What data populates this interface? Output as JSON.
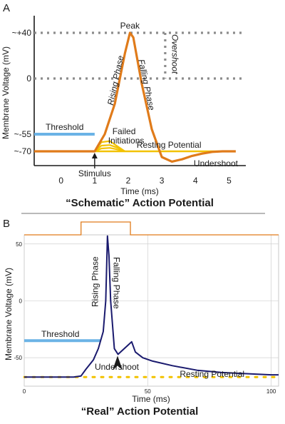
{
  "panel_a": {
    "letter": "A",
    "ylabel": "Membrane Voltage (mV)",
    "xlabel": "Time (ms)",
    "title": "“Schematic” Action Potential",
    "y_tick_labels": [
      "~+40",
      "0",
      "~-55",
      "~-70"
    ],
    "x_tick_labels": [
      "0",
      "1",
      "2",
      "3",
      "4",
      "5"
    ],
    "labels": {
      "peak": "Peak",
      "threshold": "Threshold",
      "rising": "Rising Phase",
      "falling": "Falling Phase",
      "overshoot": "Overshoot",
      "failed": "Failed\nInitiations",
      "resting": "Resting Potential",
      "undershoot": "Undershoot",
      "stimulus": "Stimulus"
    }
  },
  "panel_b": {
    "letter": "B",
    "ylabel": "Membrane Voltage (mV)",
    "xlabel": "Time (ms)",
    "title": "“Real” Action Potential",
    "y_tick_labels": [
      "50",
      "0",
      "-50"
    ],
    "x_tick_labels": [
      "0",
      "50",
      "100"
    ],
    "labels": {
      "threshold": "Threshold",
      "rising": "Rising Phase",
      "falling": "Falling Phase",
      "undershoot": "Undershoot",
      "resting": "Resting Potential"
    }
  },
  "colors": {
    "trace_a": "#e07b1a",
    "trace_b": "#1a1a6e",
    "threshold": "#6bb3e6",
    "resting": "#f2c200",
    "failed": "#f2c200",
    "stimulus_bar": "#e07b1a",
    "dashed": "#8c8c8c"
  },
  "chart_data": [
    {
      "type": "line",
      "title": "“Schematic” Action Potential",
      "xlabel": "Time (ms)",
      "ylabel": "Membrane Voltage (mV)",
      "xlim": [
        -0.8,
        5.5
      ],
      "ylim": [
        -80,
        50
      ],
      "yticks": [
        40,
        0,
        -55,
        -70
      ],
      "xticks": [
        0,
        1,
        2,
        3,
        4,
        5
      ],
      "series": [
        {
          "x": [
            -0.8,
            1.0,
            1.1,
            1.3,
            1.6,
            1.9,
            2.05,
            2.15,
            2.4,
            2.7,
            3.0,
            3.3,
            3.6,
            3.9,
            4.2,
            4.5,
            4.8,
            5.2
          ],
          "y": [
            -70,
            -70,
            -65,
            -55,
            -25,
            22,
            40,
            36,
            -5,
            -50,
            -75,
            -79,
            -77,
            -74,
            -72,
            -70.5,
            -70,
            -70
          ]
        }
      ],
      "threshold": -55,
      "resting": -70,
      "failed_initiations": [
        {
          "x": [
            1.0,
            1.2,
            1.45,
            1.7,
            1.9
          ],
          "y": [
            -70,
            -62,
            -61,
            -66,
            -70
          ]
        },
        {
          "x": [
            1.0,
            1.2,
            1.45,
            1.7,
            1.9
          ],
          "y": [
            -70,
            -65,
            -64.5,
            -67,
            -70
          ]
        },
        {
          "x": [
            1.0,
            1.2,
            1.45,
            1.7,
            1.9
          ],
          "y": [
            -70,
            -67.5,
            -67,
            -68.5,
            -70
          ]
        }
      ]
    },
    {
      "type": "line",
      "title": "“Real” Action Potential",
      "xlabel": "Time (ms)",
      "ylabel": "Membrane Voltage (mV)",
      "xlim": [
        0,
        103
      ],
      "ylim": [
        -75,
        58
      ],
      "yticks": [
        50,
        0,
        -50
      ],
      "xticks": [
        0,
        50,
        100
      ],
      "series": [
        {
          "x": [
            0,
            10,
            20,
            23,
            25,
            28,
            30,
            32,
            33,
            33.7,
            34.3,
            35,
            36.5,
            38,
            40,
            42,
            43.5,
            45,
            48,
            52,
            60,
            70,
            80,
            90,
            100,
            103
          ],
          "y": [
            -67,
            -67,
            -67,
            -66,
            -60,
            -52,
            -42,
            -27,
            0,
            57,
            40,
            0,
            -42,
            -47,
            -43,
            -39,
            -36,
            -45,
            -50,
            -53,
            -57,
            -61,
            -63,
            -64,
            -65,
            -65
          ]
        }
      ],
      "threshold": -35,
      "resting": -67,
      "stimulus_pulse": {
        "start": 23,
        "end": 43
      }
    }
  ]
}
